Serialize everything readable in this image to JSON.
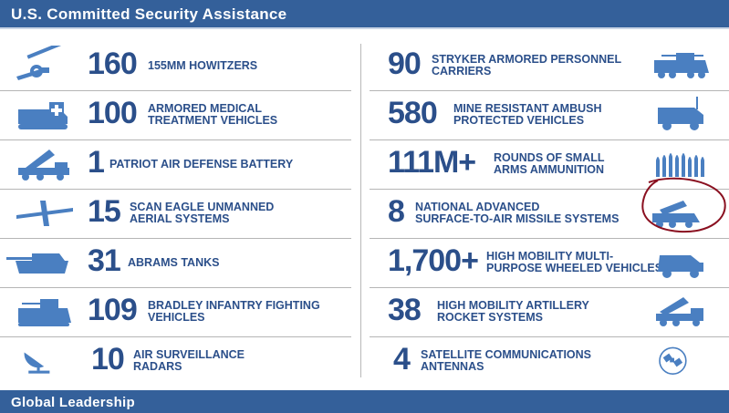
{
  "header": {
    "title": "U.S. Committed Security Assistance"
  },
  "footer": {
    "title": "Global Leadership"
  },
  "left_items": [
    {
      "icon": "howitzer-icon",
      "value": "160",
      "label_lines": [
        "155MM HOWITZERS"
      ]
    },
    {
      "icon": "medical-vehicle-icon",
      "value": "100",
      "label_lines": [
        "ARMORED MEDICAL",
        "TREATMENT VEHICLES"
      ]
    },
    {
      "icon": "patriot-launcher-icon",
      "value": "1",
      "label_lines": [
        "PATRIOT AIR DEFENSE BATTERY"
      ]
    },
    {
      "icon": "scan-eagle-drone-icon",
      "value": "15",
      "label_lines": [
        "SCAN EAGLE UNMANNED",
        "AERIAL SYSTEMS"
      ]
    },
    {
      "icon": "abrams-tank-icon",
      "value": "31",
      "label_lines": [
        "ABRAMS TANKS"
      ]
    },
    {
      "icon": "bradley-vehicle-icon",
      "value": "109",
      "label_lines": [
        "BRADLEY INFANTRY FIGHTING",
        "VEHICLES"
      ]
    },
    {
      "icon": "radar-dish-icon",
      "value": "10",
      "label_lines": [
        "AIR SURVEILLANCE",
        "RADARS"
      ]
    }
  ],
  "right_items": [
    {
      "icon": "stryker-vehicle-icon",
      "value": "90",
      "label_lines": [
        "STRYKER ARMORED PERSONNEL",
        "CARRIERS"
      ]
    },
    {
      "icon": "mrap-vehicle-icon",
      "value": "580",
      "label_lines": [
        "MINE RESISTANT AMBUSH",
        "PROTECTED VEHICLES"
      ]
    },
    {
      "icon": "ammunition-rounds-icon",
      "value": "111M+",
      "label_lines": [
        "ROUNDS OF SMALL",
        "ARMS AMMUNITION"
      ]
    },
    {
      "icon": "nasams-launcher-icon",
      "value": "8",
      "label_lines": [
        "NATIONAL ADVANCED",
        "SURFACE-TO-AIR MISSILE SYSTEMS"
      ]
    },
    {
      "icon": "humvee-icon",
      "value": "1,700+",
      "label_lines": [
        "HIGH MOBILITY MULTI-",
        "PURPOSE WHEELED VEHICLES"
      ]
    },
    {
      "icon": "himars-launcher-icon",
      "value": "38",
      "label_lines": [
        "HIGH MOBILITY ARTILLERY",
        "ROCKET SYSTEMS"
      ]
    },
    {
      "icon": "satellite-antenna-icon",
      "value": "4",
      "label_lines": [
        "SATELLITE COMMUNICATIONS",
        "ANTENNAS"
      ]
    }
  ],
  "colors": {
    "banner": "#34609a",
    "text": "#2b4f8a",
    "icon": "#4a7fc1",
    "annotation": "#8a1020"
  }
}
